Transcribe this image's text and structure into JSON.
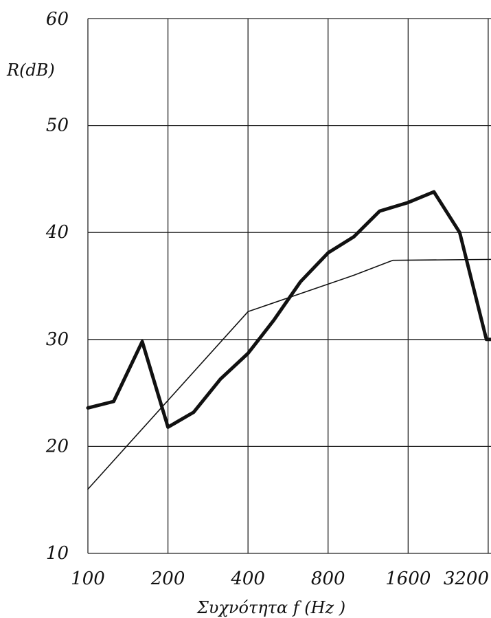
{
  "chart_data": {
    "type": "line",
    "title": "",
    "xlabel": "Συχνότητα  f (Hz )",
    "ylabel": "R(dB)",
    "x_scale": "log2",
    "x_ticks": [
      100,
      200,
      400,
      800,
      1600,
      3200
    ],
    "x_tick_labels": [
      "100",
      "200",
      "400",
      "800",
      "1600",
      "3200"
    ],
    "xlim": [
      100,
      3900
    ],
    "ylim": [
      10,
      60
    ],
    "y_ticks": [
      10,
      20,
      30,
      40,
      50,
      60
    ],
    "y_tick_labels": [
      "10",
      "20",
      "30",
      "40",
      "50",
      "60"
    ],
    "grid": true,
    "series": [
      {
        "style": "thick",
        "color": "#111111",
        "x": [
          100,
          125,
          160,
          200,
          250,
          315,
          400,
          500,
          630,
          800,
          1000,
          1250,
          1600,
          2000,
          2500,
          3150,
          3900
        ],
        "y": [
          23.6,
          24.2,
          29.8,
          21.8,
          23.2,
          26.3,
          28.7,
          31.8,
          35.4,
          38.1,
          39.6,
          42.0,
          42.8,
          43.8,
          40.0,
          30.0,
          30.0
        ]
      },
      {
        "style": "thin",
        "color": "#111111",
        "x": [
          100,
          400,
          1000,
          1400,
          3900
        ],
        "y": [
          16.0,
          32.6,
          36.0,
          37.4,
          37.5
        ]
      }
    ]
  }
}
